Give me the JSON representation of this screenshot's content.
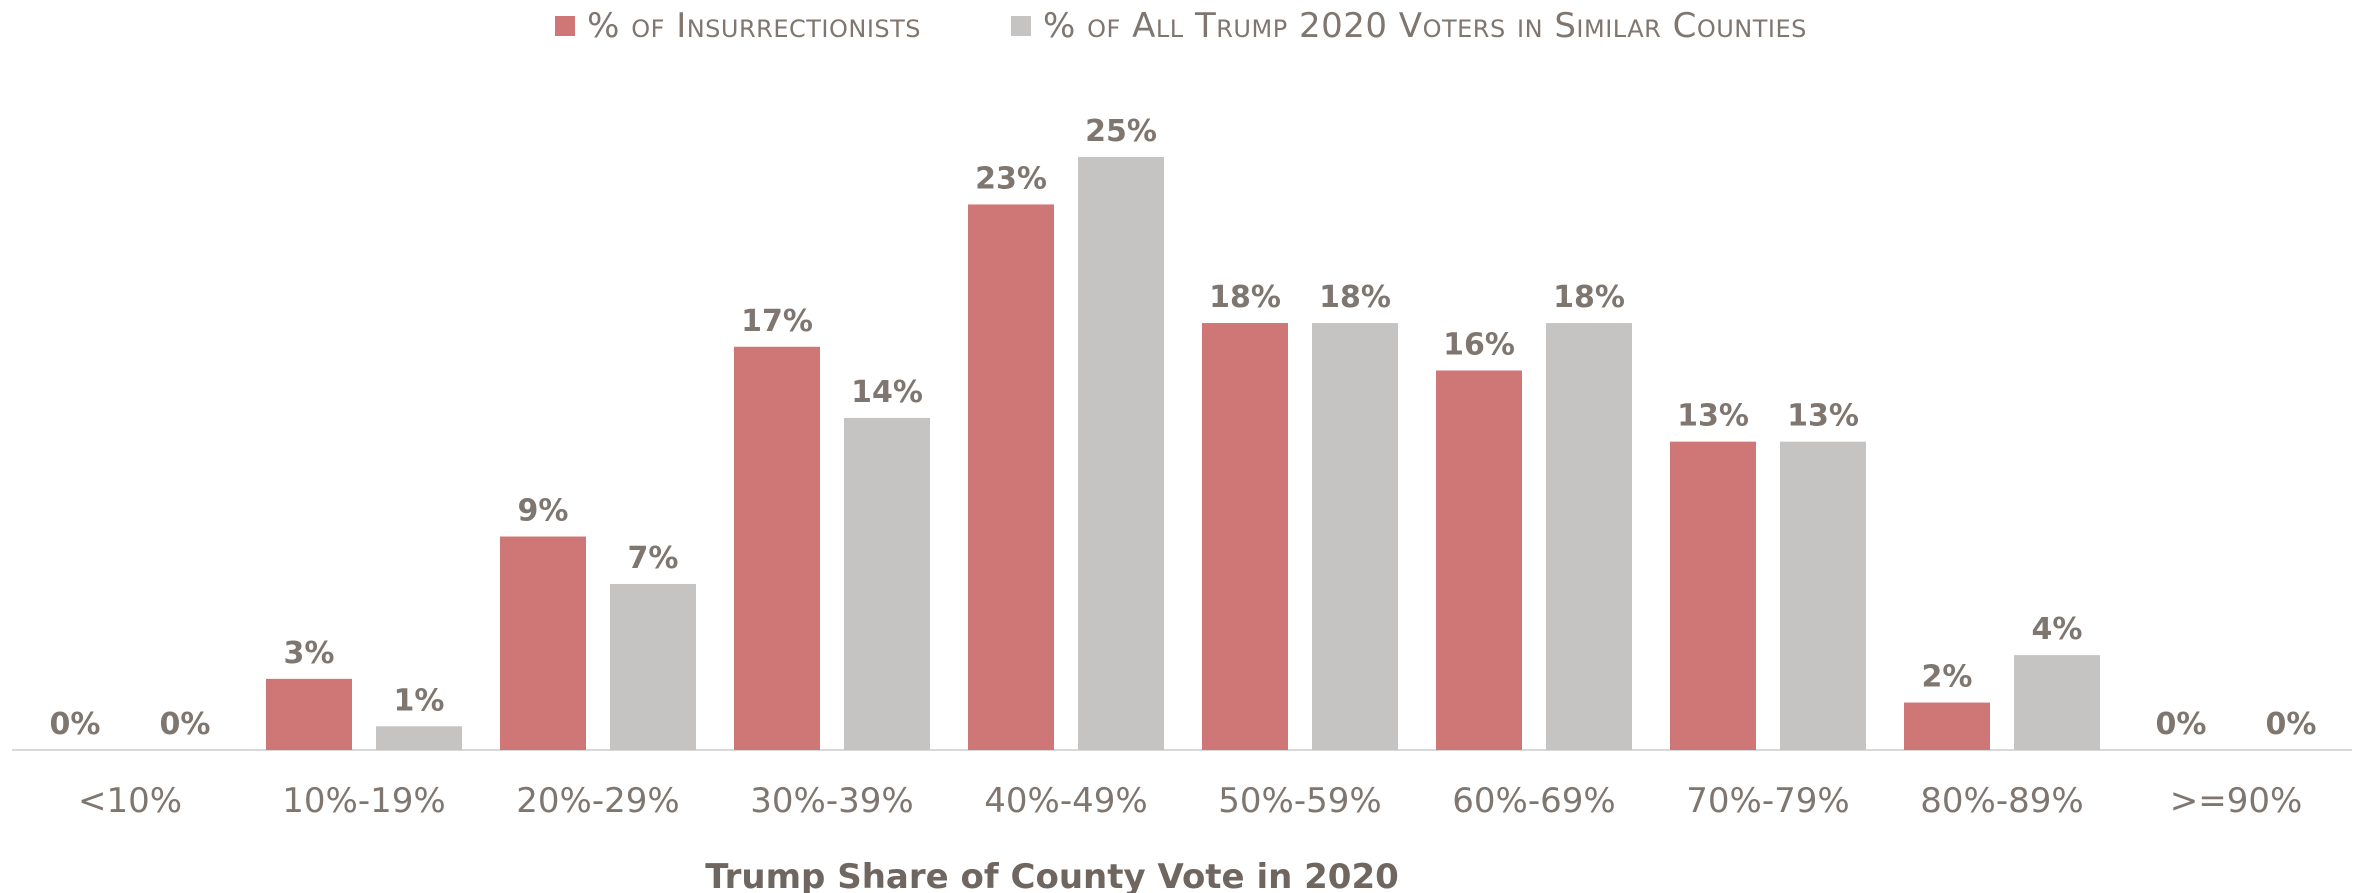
{
  "chart_data": {
    "type": "bar",
    "categories": [
      "<10%",
      "10%-19%",
      "20%-29%",
      "30%-39%",
      "40%-49%",
      "50%-59%",
      "60%-69%",
      "70%-79%",
      "80%-89%",
      ">=90%"
    ],
    "series": [
      {
        "name": "% of Insurrectionists",
        "color": "#cf7676",
        "values": [
          0,
          3,
          9,
          17,
          23,
          18,
          16,
          13,
          2,
          0
        ],
        "labels": [
          "0%",
          "3%",
          "9%",
          "17%",
          "23%",
          "18%",
          "16%",
          "13%",
          "2%",
          "0%"
        ]
      },
      {
        "name": "% of All Trump 2020 Voters in Similar Counties",
        "color": "#c5c4c3",
        "values": [
          0,
          1,
          7,
          14,
          25,
          18,
          18,
          13,
          4,
          0
        ],
        "labels": [
          "0%",
          "1%",
          "7%",
          "14%",
          "25%",
          "18%",
          "18%",
          "13%",
          "4%",
          "0%"
        ]
      }
    ],
    "title": "",
    "xlabel": "Trump Share of County Vote in 2020",
    "ylabel": "",
    "ylim": [
      0,
      25
    ],
    "grid": false,
    "legend_position": "top-center"
  }
}
